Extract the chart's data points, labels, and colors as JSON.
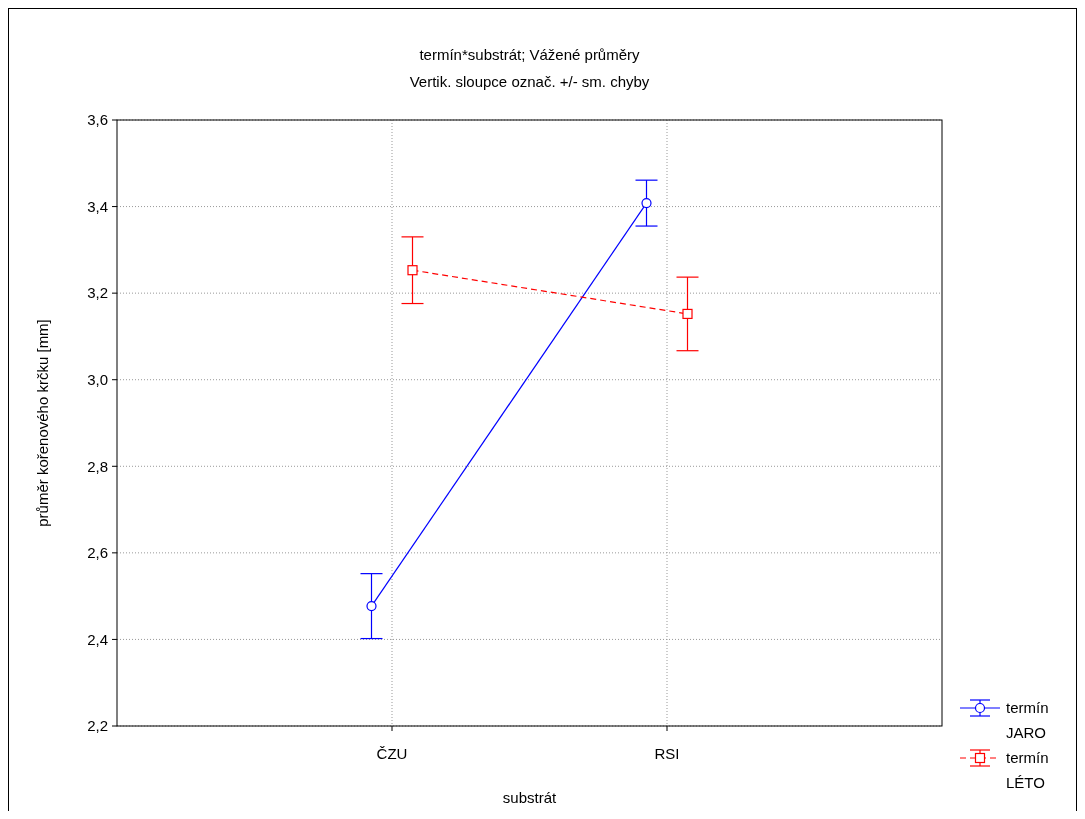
{
  "chart_data": {
    "type": "line",
    "title": "termín*substrát; Vážené průměry",
    "subtitle": "Vertik. sloupce označ. +/- sm. chyby",
    "xlabel": "substrát",
    "ylabel": "průměr kořenového krčku [mm]",
    "categories": [
      "ČZU",
      "RSI"
    ],
    "series": [
      {
        "name": "termín JARO",
        "color": "#0000ff",
        "values": [
          2.477,
          3.408
        ],
        "errors": [
          0.075,
          0.053
        ],
        "marker": "circle",
        "line_style": "solid"
      },
      {
        "name": "termín LÉTO",
        "color": "#ff0000",
        "values": [
          3.253,
          3.152
        ],
        "errors": [
          0.077,
          0.085
        ],
        "marker": "square",
        "line_style": "dashed"
      }
    ],
    "ylim": [
      2.2,
      3.6
    ],
    "yticks": [
      {
        "value": 2.2,
        "label": "2,2"
      },
      {
        "value": 2.4,
        "label": "2,4"
      },
      {
        "value": 2.6,
        "label": "2,6"
      },
      {
        "value": 2.8,
        "label": "2,8"
      },
      {
        "value": 3.0,
        "label": "3,0"
      },
      {
        "value": 3.2,
        "label": "3,2"
      },
      {
        "value": 3.4,
        "label": "3,4"
      },
      {
        "value": 3.6,
        "label": "3,6"
      }
    ],
    "grid": true,
    "legend": "bottom right"
  }
}
